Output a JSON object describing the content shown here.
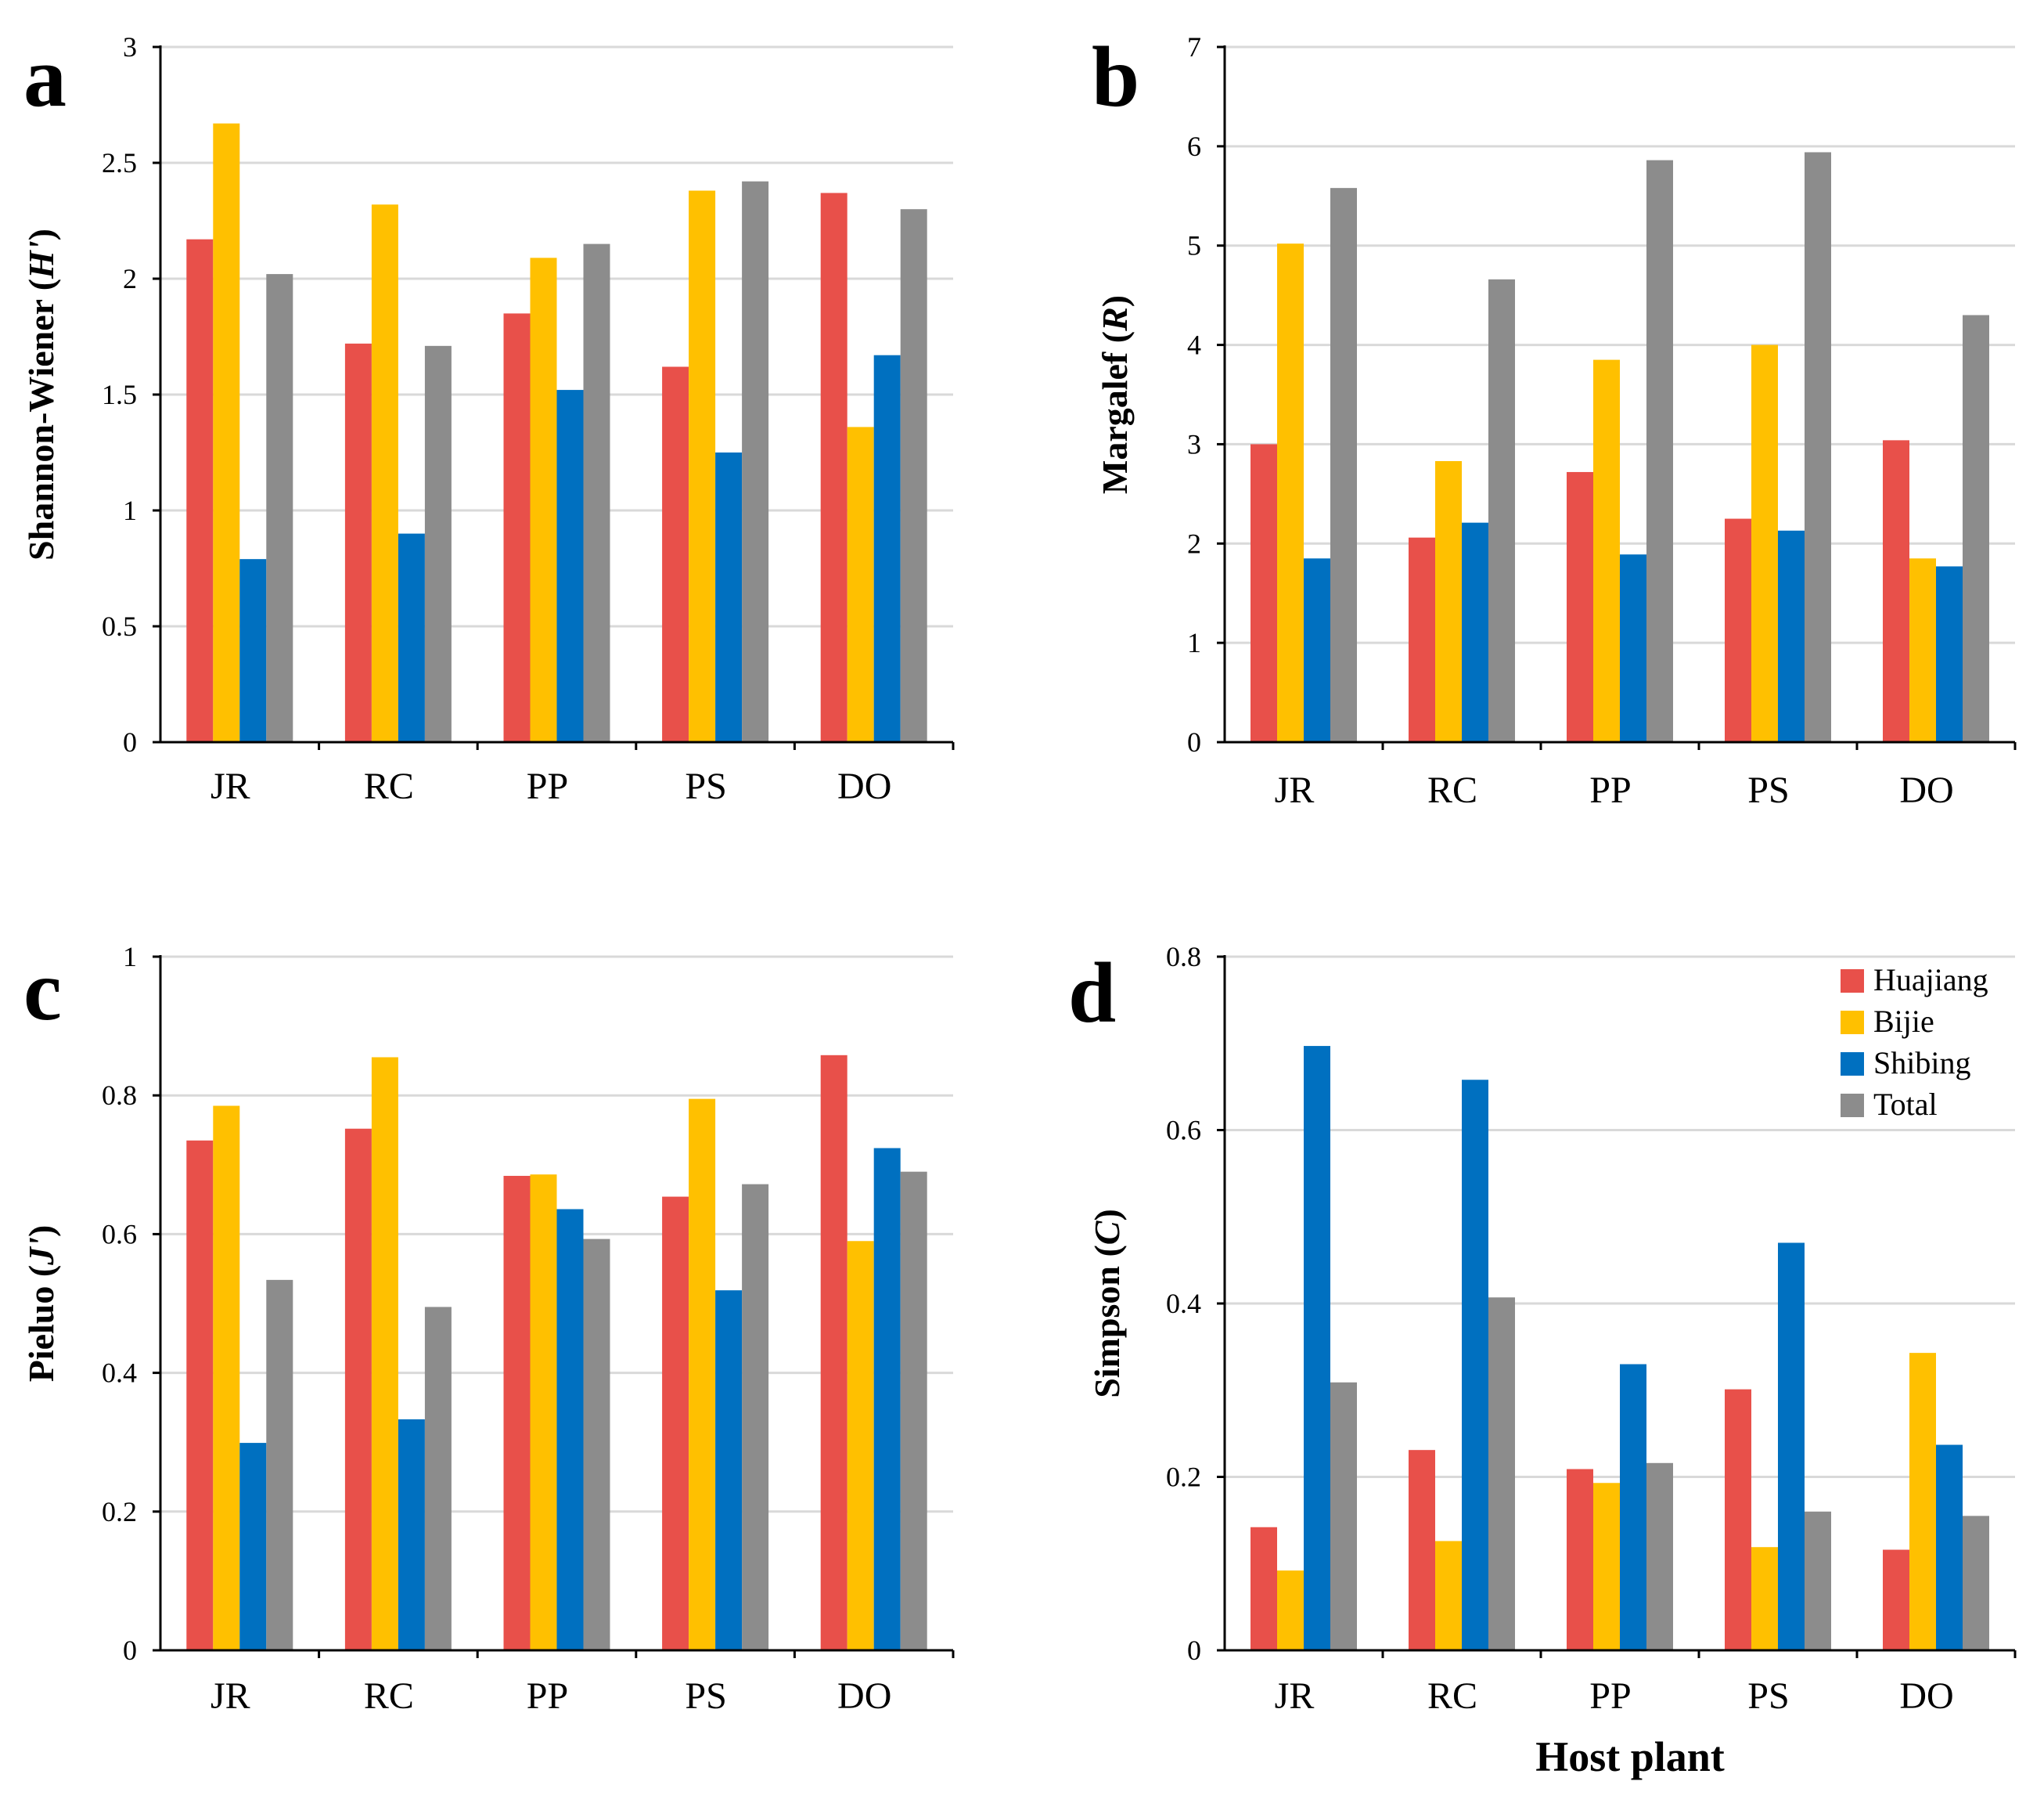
{
  "figure": {
    "xlabel": "Host plant",
    "colors": {
      "Huajiang": "#E8504A",
      "Bijie": "#FFC000",
      "Shibing": "#0070C0",
      "Total": "#8C8C8C",
      "grid": "#d9d9d9",
      "axis": "#000000"
    },
    "legend": [
      "Huajiang",
      "Bijie",
      "Shibing",
      "Total"
    ]
  },
  "chart_data": [
    {
      "panel": "a",
      "type": "bar",
      "ylabel_pre": "Shannon-Wiener (",
      "ylabel_var": "H'",
      "ylabel_post": ")",
      "ylim": [
        0,
        3
      ],
      "yticks": [
        0,
        0.5,
        1,
        1.5,
        2,
        2.5,
        3
      ],
      "ytick_labels": [
        "0",
        "0.5",
        "1",
        "1.5",
        "2",
        "2.5",
        "3"
      ],
      "categories": [
        "JR",
        "RC",
        "PP",
        "PS",
        "DO"
      ],
      "series": [
        {
          "name": "Huajiang",
          "values": [
            2.17,
            1.72,
            1.85,
            1.62,
            2.37
          ]
        },
        {
          "name": "Bijie",
          "values": [
            2.67,
            2.32,
            2.09,
            2.38,
            1.36
          ]
        },
        {
          "name": "Shibing",
          "values": [
            0.79,
            0.9,
            1.52,
            1.25,
            1.67
          ]
        },
        {
          "name": "Total",
          "values": [
            2.02,
            1.71,
            2.15,
            2.42,
            2.3
          ]
        }
      ]
    },
    {
      "panel": "b",
      "type": "bar",
      "ylabel_pre": "Margalef (",
      "ylabel_var": "R",
      "ylabel_post": ")",
      "ylim": [
        0,
        7
      ],
      "yticks": [
        0,
        1,
        2,
        3,
        4,
        5,
        6,
        7
      ],
      "ytick_labels": [
        "0",
        "1",
        "2",
        "3",
        "4",
        "5",
        "6",
        "7"
      ],
      "categories": [
        "JR",
        "RC",
        "PP",
        "PS",
        "DO"
      ],
      "series": [
        {
          "name": "Huajiang",
          "values": [
            3.0,
            2.06,
            2.72,
            2.25,
            3.04
          ]
        },
        {
          "name": "Bijie",
          "values": [
            5.02,
            2.83,
            3.85,
            4.0,
            1.85
          ]
        },
        {
          "name": "Shibing",
          "values": [
            1.85,
            2.21,
            1.89,
            2.13,
            1.77
          ]
        },
        {
          "name": "Total",
          "values": [
            5.58,
            4.66,
            5.86,
            5.94,
            4.3
          ]
        }
      ]
    },
    {
      "panel": "c",
      "type": "bar",
      "ylabel_pre": "Pieluo (",
      "ylabel_var": "J'",
      "ylabel_post": ")",
      "ylim": [
        0,
        1
      ],
      "yticks": [
        0,
        0.2,
        0.4,
        0.6,
        0.8,
        1
      ],
      "ytick_labels": [
        "0",
        "0.2",
        "0.4",
        "0.6",
        "0.8",
        "1"
      ],
      "categories": [
        "JR",
        "RC",
        "PP",
        "PS",
        "DO"
      ],
      "series": [
        {
          "name": "Huajiang",
          "values": [
            0.735,
            0.752,
            0.684,
            0.654,
            0.858
          ]
        },
        {
          "name": "Bijie",
          "values": [
            0.785,
            0.855,
            0.686,
            0.795,
            0.59
          ]
        },
        {
          "name": "Shibing",
          "values": [
            0.299,
            0.333,
            0.636,
            0.519,
            0.724
          ]
        },
        {
          "name": "Total",
          "values": [
            0.534,
            0.495,
            0.593,
            0.672,
            0.69
          ]
        }
      ]
    },
    {
      "panel": "d",
      "type": "bar",
      "ylabel_pre": "Simpson (",
      "ylabel_var": "C",
      "ylabel_post": ")",
      "ylim": [
        0,
        0.8
      ],
      "yticks": [
        0,
        0.2,
        0.4,
        0.6,
        0.8
      ],
      "ytick_labels": [
        "0",
        "0.2",
        "0.4",
        "0.6",
        "0.8"
      ],
      "categories": [
        "JR",
        "RC",
        "PP",
        "PS",
        "DO"
      ],
      "legend": "top-right",
      "series": [
        {
          "name": "Huajiang",
          "values": [
            0.142,
            0.231,
            0.209,
            0.301,
            0.116
          ]
        },
        {
          "name": "Bijie",
          "values": [
            0.092,
            0.126,
            0.193,
            0.119,
            0.343
          ]
        },
        {
          "name": "Shibing",
          "values": [
            0.697,
            0.658,
            0.33,
            0.47,
            0.237
          ]
        },
        {
          "name": "Total",
          "values": [
            0.309,
            0.407,
            0.216,
            0.16,
            0.155
          ]
        }
      ]
    }
  ]
}
